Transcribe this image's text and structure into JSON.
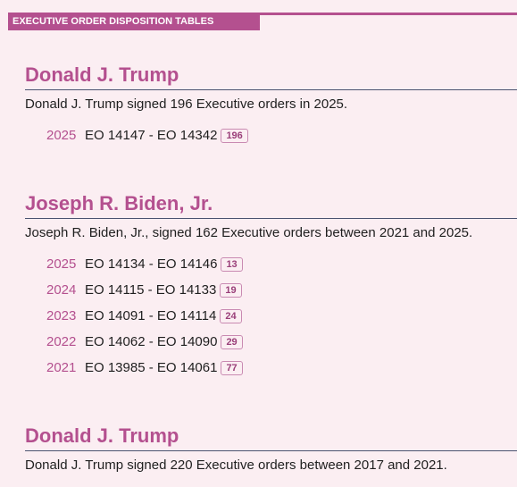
{
  "header": {
    "label": "EXECUTIVE ORDER DISPOSITION TABLES"
  },
  "sections": [
    {
      "president": "Donald J. Trump",
      "summary": "Donald J. Trump signed 196 Executive orders in 2025.",
      "years": [
        {
          "year": "2025",
          "range": "EO 14147 - EO 14342",
          "count": "196"
        }
      ]
    },
    {
      "president": "Joseph R. Biden, Jr.",
      "summary": "Joseph R. Biden, Jr., signed 162 Executive orders between 2021 and 2025.",
      "years": [
        {
          "year": "2025",
          "range": "EO 14134 - EO 14146",
          "count": "13"
        },
        {
          "year": "2024",
          "range": "EO 14115 - EO 14133",
          "count": "19"
        },
        {
          "year": "2023",
          "range": "EO 14091 - EO 14114",
          "count": "24"
        },
        {
          "year": "2022",
          "range": "EO 14062 - EO 14090",
          "count": "29"
        },
        {
          "year": "2021",
          "range": "EO 13985 - EO 14061",
          "count": "77"
        }
      ]
    },
    {
      "president": "Donald J. Trump",
      "summary": "Donald J. Trump signed 220 Executive orders between 2017 and 2021."
    }
  ]
}
